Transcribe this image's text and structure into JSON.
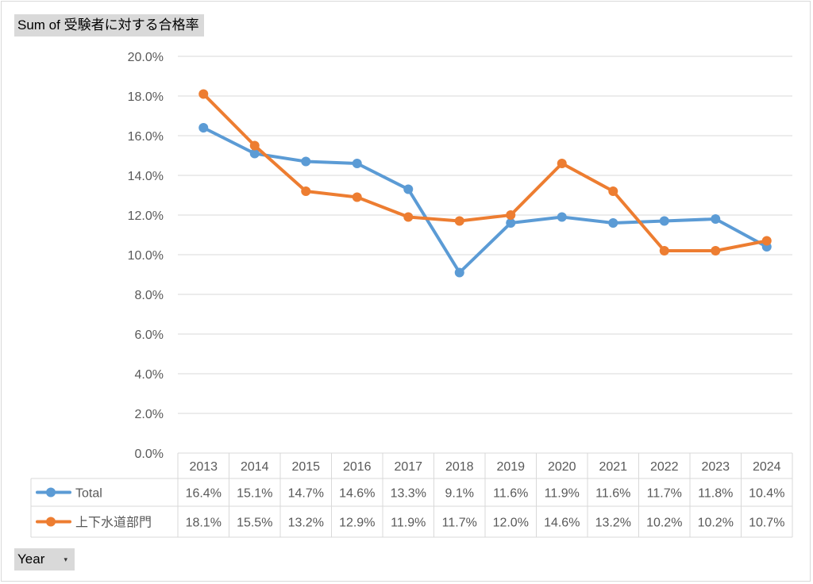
{
  "pivot": {
    "value_field_label": "Sum of 受験者に対する合格率",
    "axis_field_label": "Year"
  },
  "colors": {
    "total": "#5b9bd5",
    "water": "#ed7d31",
    "grid": "#d9d9d9",
    "axis_text": "#595959"
  },
  "chart_data": {
    "type": "line",
    "title": "",
    "xlabel": "",
    "ylabel": "",
    "categories": [
      "2013",
      "2014",
      "2015",
      "2016",
      "2017",
      "2018",
      "2019",
      "2020",
      "2021",
      "2022",
      "2023",
      "2024"
    ],
    "ylim": [
      0,
      20
    ],
    "y_ticks": [
      "0.0%",
      "2.0%",
      "4.0%",
      "6.0%",
      "8.0%",
      "10.0%",
      "12.0%",
      "14.0%",
      "16.0%",
      "18.0%",
      "20.0%"
    ],
    "grid": true,
    "legend": "data-table",
    "series": [
      {
        "name": "Total",
        "color": "#5b9bd5",
        "values": [
          16.4,
          15.1,
          14.7,
          14.6,
          13.3,
          9.1,
          11.6,
          11.9,
          11.6,
          11.7,
          11.8,
          10.4
        ],
        "labels": [
          "16.4%",
          "15.1%",
          "14.7%",
          "14.6%",
          "13.3%",
          "9.1%",
          "11.6%",
          "11.9%",
          "11.6%",
          "11.7%",
          "11.8%",
          "10.4%"
        ]
      },
      {
        "name": "上下水道部門",
        "color": "#ed7d31",
        "values": [
          18.1,
          15.5,
          13.2,
          12.9,
          11.9,
          11.7,
          12.0,
          14.6,
          13.2,
          10.2,
          10.2,
          10.7
        ],
        "labels": [
          "18.1%",
          "15.5%",
          "13.2%",
          "12.9%",
          "11.9%",
          "11.7%",
          "12.0%",
          "14.6%",
          "13.2%",
          "10.2%",
          "10.2%",
          "10.7%"
        ]
      }
    ]
  }
}
